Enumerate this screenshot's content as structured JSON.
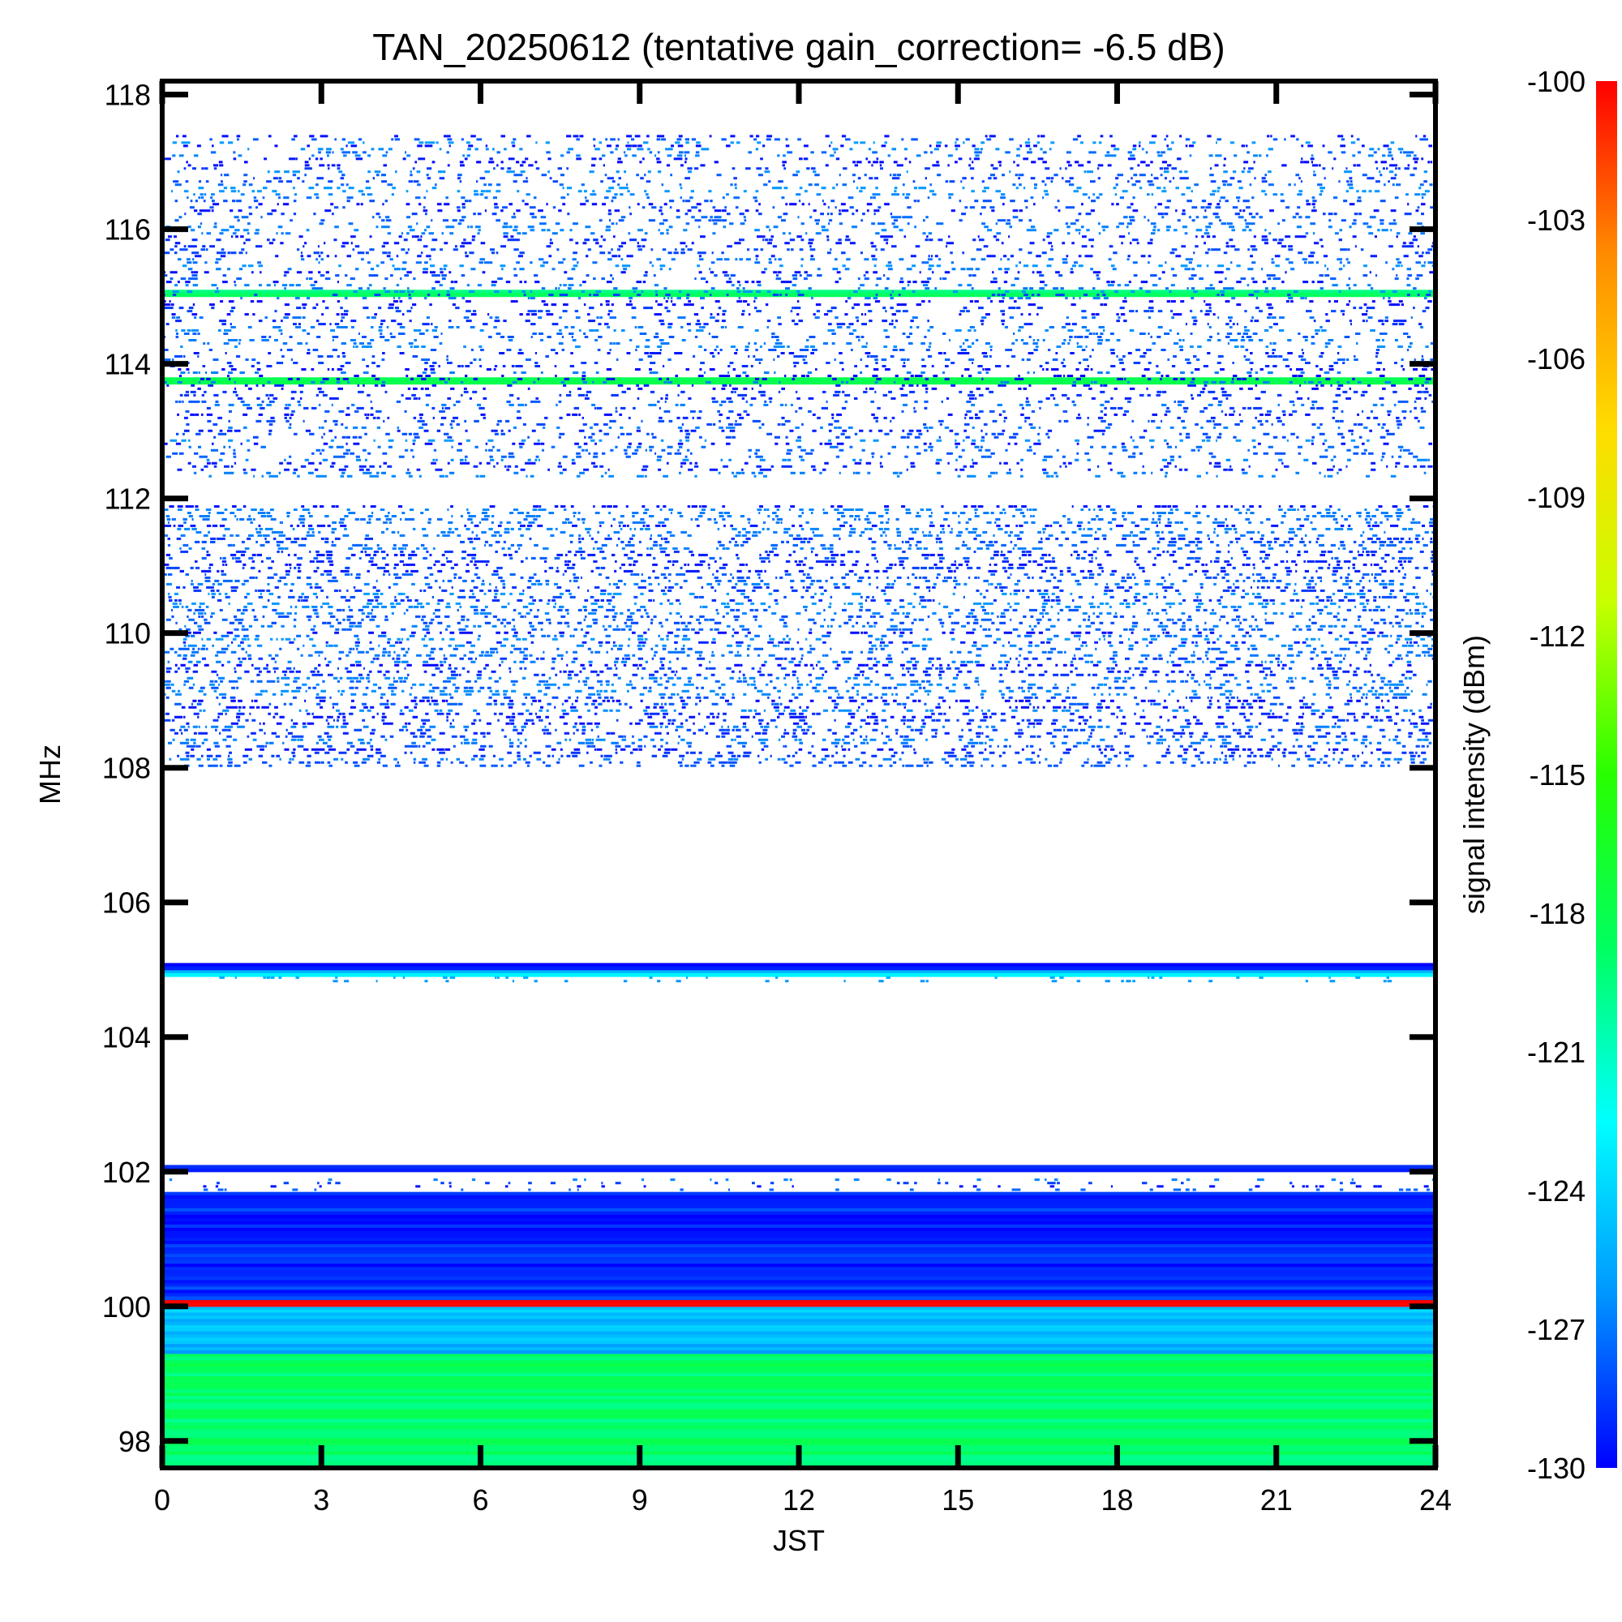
{
  "chart_data": {
    "type": "heatmap",
    "title": "TAN_20250612 (tentative gain_correction= -6.5 dB)",
    "xlabel": "JST",
    "ylabel": "MHz",
    "xlim": [
      0,
      24
    ],
    "ylim": [
      97.6,
      118.2
    ],
    "x_ticks": [
      "0",
      "3",
      "6",
      "9",
      "12",
      "15",
      "18",
      "21",
      "24"
    ],
    "y_ticks": [
      "98",
      "100",
      "102",
      "104",
      "106",
      "108",
      "110",
      "112",
      "114",
      "116",
      "118"
    ],
    "x_tick_values": [
      0,
      3,
      6,
      9,
      12,
      15,
      18,
      21,
      24
    ],
    "y_tick_values": [
      98,
      100,
      102,
      104,
      106,
      108,
      110,
      112,
      114,
      116,
      118
    ],
    "colorbar": {
      "label": "signal intensity (dBm)",
      "min": -130,
      "max": -100,
      "tick_labels": [
        "-100",
        "-103",
        "-106",
        "-109",
        "-112",
        "-115",
        "-118",
        "-121",
        "-124",
        "-127",
        "-130"
      ],
      "tick_values": [
        -100,
        -103,
        -106,
        -109,
        -112,
        -115,
        -118,
        -121,
        -124,
        -127,
        -130
      ],
      "colors": [
        "#0000ff",
        "#0096ff",
        "#00ffff",
        "#00ff60",
        "#28ff00",
        "#c8ff00",
        "#ffdc00",
        "#ff8c00",
        "#ff0000"
      ]
    },
    "bands": [
      {
        "freq_range": [
          97.6,
          99.3
        ],
        "level_dBm": -119,
        "pattern": "continuous"
      },
      {
        "freq_range": [
          99.3,
          100.0
        ],
        "level_dBm": -125,
        "pattern": "continuous"
      },
      {
        "freq_range": [
          100.0,
          100.1
        ],
        "level_dBm": -100,
        "pattern": "continuous"
      },
      {
        "freq_range": [
          100.1,
          101.7
        ],
        "level_dBm": -129,
        "pattern": "continuous"
      },
      {
        "freq_range": [
          101.7,
          101.9
        ],
        "level_dBm": -130,
        "pattern": "sparse"
      },
      {
        "freq_range": [
          102.0,
          102.1
        ],
        "level_dBm": -130,
        "pattern": "continuous"
      },
      {
        "freq_range": [
          104.8,
          104.9
        ],
        "level_dBm": -128,
        "pattern": "sparse"
      },
      {
        "freq_range": [
          104.9,
          105.0
        ],
        "level_dBm": -124,
        "pattern": "continuous"
      },
      {
        "freq_range": [
          105.0,
          105.1
        ],
        "level_dBm": -130,
        "pattern": "continuous"
      },
      {
        "freq_range": [
          108.0,
          111.9
        ],
        "level_dBm": -130,
        "pattern": "dense-speckle"
      },
      {
        "freq_range": [
          112.3,
          117.4
        ],
        "level_dBm": -130,
        "pattern": "speckle"
      },
      {
        "freq_range": [
          113.7,
          113.8
        ],
        "level_dBm": -117,
        "pattern": "continuous"
      },
      {
        "freq_range": [
          115.0,
          115.1
        ],
        "level_dBm": -119,
        "pattern": "continuous"
      }
    ]
  }
}
